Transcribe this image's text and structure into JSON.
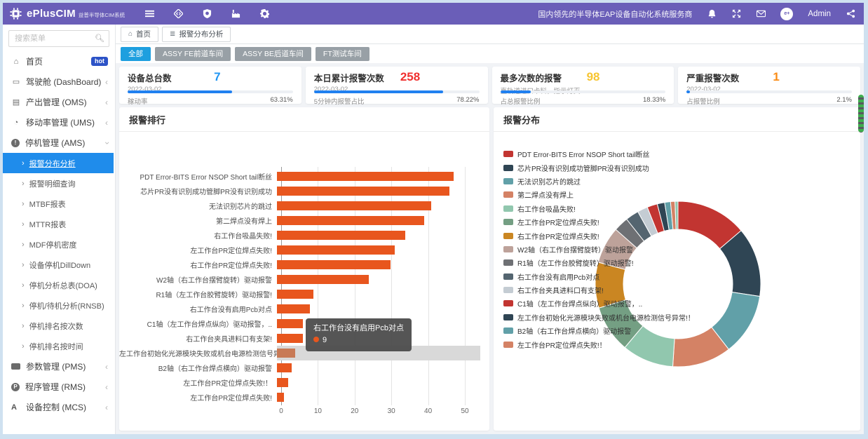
{
  "header": {
    "logo_text": "ePlusCIM",
    "logo_subtitle": "益普半导体CIM系统",
    "slogan": "国内领先的半导体EAP设备自动化系统服务商",
    "user": "Admin"
  },
  "sidebar": {
    "search_placeholder": "搜索菜单",
    "items": [
      {
        "icon": "home",
        "label": "首页",
        "badge": "hot"
      },
      {
        "icon": "dashboard",
        "label": "驾驶舱 (DashBoard)",
        "arrow": "collapsed"
      },
      {
        "icon": "output",
        "label": "产出管理 (OMS)",
        "arrow": "collapsed"
      },
      {
        "icon": "utilization",
        "label": "移动率管理 (UMS)",
        "arrow": "collapsed"
      },
      {
        "icon": "downtime",
        "label": "停机管理 (AMS)",
        "arrow": "expanded",
        "children": [
          {
            "label": "报警分布分析",
            "active": true
          },
          {
            "label": "报警明细查询"
          },
          {
            "label": "MTBF报表"
          },
          {
            "label": "MTTR报表"
          },
          {
            "label": "MDF停机密度"
          },
          {
            "label": "设备停机DillDown"
          },
          {
            "label": "停机分析总表(DOA)"
          },
          {
            "label": "停机/待机分析(RNSB)"
          },
          {
            "label": "停机排名按次数"
          },
          {
            "label": "停机排名按时间"
          }
        ]
      },
      {
        "icon": "params",
        "label": "参数管理 (PMS)",
        "arrow": "collapsed"
      },
      {
        "icon": "program",
        "label": "程序管理 (RMS)",
        "arrow": "collapsed"
      },
      {
        "icon": "control",
        "label": "设备控制 (MCS)",
        "arrow": "collapsed"
      }
    ]
  },
  "tabs": [
    {
      "label": "首页",
      "icon": "home"
    },
    {
      "label": "报警分布分析",
      "icon": "list"
    }
  ],
  "filters": [
    {
      "label": "全部",
      "active": true
    },
    {
      "label": "ASSY FE前道车间",
      "active": false
    },
    {
      "label": "ASSY BE后道车间",
      "active": false
    },
    {
      "label": "FT测试车间",
      "active": false
    }
  ],
  "cards": [
    {
      "title": "设备总台数",
      "subtitle": "2022-03-02",
      "value": "7",
      "value_color": "#2196f3",
      "progress": 63.31,
      "footer_label": "稼动率",
      "footer_value": "63.31%"
    },
    {
      "title": "本日累计报警次数",
      "subtitle": "2022-03-02",
      "value": "258",
      "value_color": "#f0302f",
      "progress": 78.22,
      "footer_label": "5分钟内报警占比",
      "footer_value": "78.22%"
    },
    {
      "title": "最多次数的报警",
      "subtitle": "直轨道进口卡料，指示灯灭",
      "value": "98",
      "value_color": "#f7c531",
      "progress": 18.33,
      "footer_label": "占总报警比例",
      "footer_value": "18.33%"
    },
    {
      "title": "严重报警次数",
      "subtitle": "2022-03-02",
      "value": "1",
      "value_color": "#fa8c16",
      "progress": 2.1,
      "footer_label": "占报警比例",
      "footer_value": "2.1%"
    }
  ],
  "chart_data": [
    {
      "type": "bar",
      "title": "报警排行",
      "orientation": "horizontal",
      "categories": [
        "PDT Error-BITS Error NSOP Short tail断丝",
        "芯片PR没有识别成功管脚PR没有识别成功",
        "无法识别芯片的跳过",
        "第二焊点没有焊上",
        "右工作台吸晶失败!",
        "左工作台PR定位焊点失败!",
        "右工作台PR定位焊点失败!",
        "W2轴（右工作台摆臂旋转）驱动报警",
        "R1轴（左工作台胶臂旋转）驱动报警!",
        "右工作台没有启用Pcb对点",
        "C1轴（左工作台焊点纵向）驱动报警，..",
        "右工作台夹具进料口有支架!",
        "左工作台初始化光源模块失败或机台电源检测信号异常!！",
        "B2轴（右工作台焊点横向）驱动报警",
        "左工作台PR定位焊点失败!！",
        "左工作台PR定位焊点失败!"
      ],
      "values": [
        48,
        47,
        42,
        40,
        35,
        32,
        31,
        25,
        10,
        9,
        7,
        7,
        5,
        4,
        3,
        2
      ],
      "xlim": [
        0,
        50
      ],
      "xticks": [
        0,
        10,
        20,
        30,
        40,
        50
      ],
      "bar_color": "#e8561e",
      "highlight_index": 12,
      "tooltip": {
        "label": "右工作台没有启用Pcb对点",
        "value": "9"
      }
    },
    {
      "type": "pie",
      "title": "报警分布",
      "donut": true,
      "labels": [
        "PDT Error-BITS Error NSOP Short tail断丝",
        "芯片PR没有识别成功管脚PR没有识别成功",
        "无法识别芯片的跳过",
        "第二焊点没有焊上",
        "右工作台吸晶失败!",
        "左工作台PR定位焊点失败!",
        "右工作台PR定位焊点失败!",
        "W2轴（右工作台摆臂旋转）驱动报警",
        "R1轴（左工作台胶臂旋转）驱动报警!",
        "右工作台没有启用Pcb对点",
        "右工作台夹具进料口有支架!",
        "C1轴（左工作台焊点纵向）驱动报警，..",
        "左工作台初始化光源模块失败或机台电源检测信号异常!！",
        "B2轴（右工作台焊点横向）驱动报警",
        "左工作台PR定位焊点失败!！",
        "左工作台PR定位焊点失败!"
      ],
      "values": [
        48,
        47,
        42,
        40,
        35,
        32,
        31,
        25,
        10,
        9,
        7,
        7,
        5,
        4,
        3,
        2
      ],
      "legend_position": "left",
      "palette": [
        "#c23531",
        "#2f4554",
        "#61a0a8",
        "#d48265",
        "#91c7ae",
        "#749f83",
        "#ca8622",
        "#bda29a",
        "#6e7074",
        "#546570",
        "#c4ccd3"
      ]
    }
  ]
}
